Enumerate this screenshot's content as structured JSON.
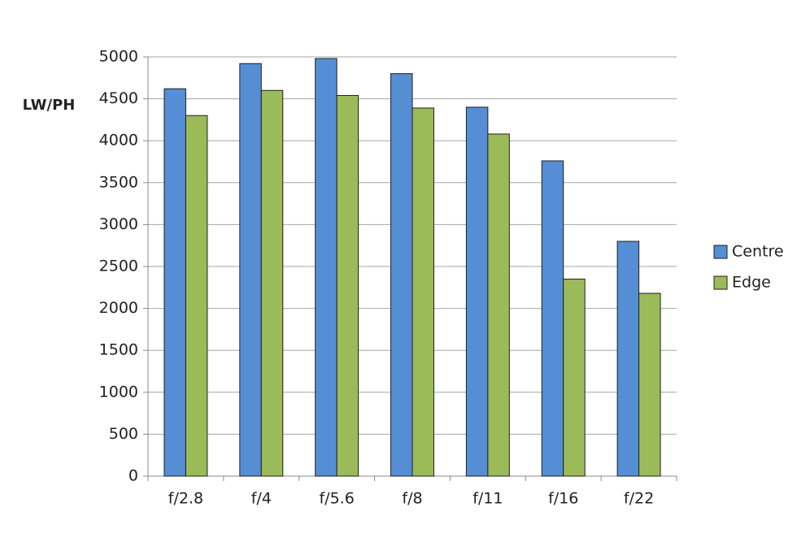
{
  "chart_data": {
    "type": "bar",
    "y_axis_label": "LW/PH",
    "categories": [
      "f/2.8",
      "f/4",
      "f/5.6",
      "f/8",
      "f/11",
      "f/16",
      "f/22"
    ],
    "series": [
      {
        "name": "Centre",
        "color": "#558ed5",
        "values": [
          4620,
          4920,
          4980,
          4800,
          4400,
          3760,
          2800
        ]
      },
      {
        "name": "Edge",
        "color": "#9bbb59",
        "values": [
          4300,
          4600,
          4540,
          4390,
          4080,
          2350,
          2180
        ]
      }
    ],
    "ylim": [
      0,
      5000
    ],
    "yticks": [
      0,
      500,
      1000,
      1500,
      2000,
      2500,
      3000,
      3500,
      4000,
      4500,
      5000
    ],
    "grid": true,
    "legend": "right"
  }
}
